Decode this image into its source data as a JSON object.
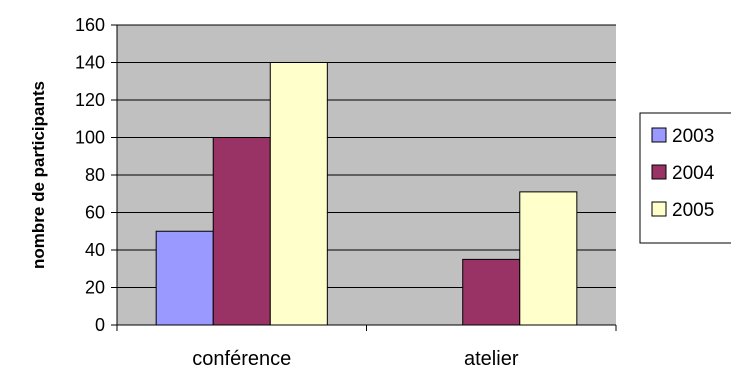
{
  "chart_data": {
    "type": "bar",
    "title": "",
    "xlabel": "",
    "ylabel": "nombre de participants",
    "categories": [
      "conférence",
      "atelier"
    ],
    "series": [
      {
        "name": "2003",
        "values": [
          50,
          0
        ],
        "color": "#9999ff"
      },
      {
        "name": "2004",
        "values": [
          100,
          35
        ],
        "color": "#993366"
      },
      {
        "name": "2005",
        "values": [
          140,
          71
        ],
        "color": "#ffffcc"
      }
    ],
    "ylim": [
      0,
      160
    ],
    "yticks": [
      0,
      20,
      40,
      60,
      80,
      100,
      120,
      140,
      160
    ],
    "grid": true,
    "plot_background": "#c0c0c0",
    "legend_position": "right"
  }
}
